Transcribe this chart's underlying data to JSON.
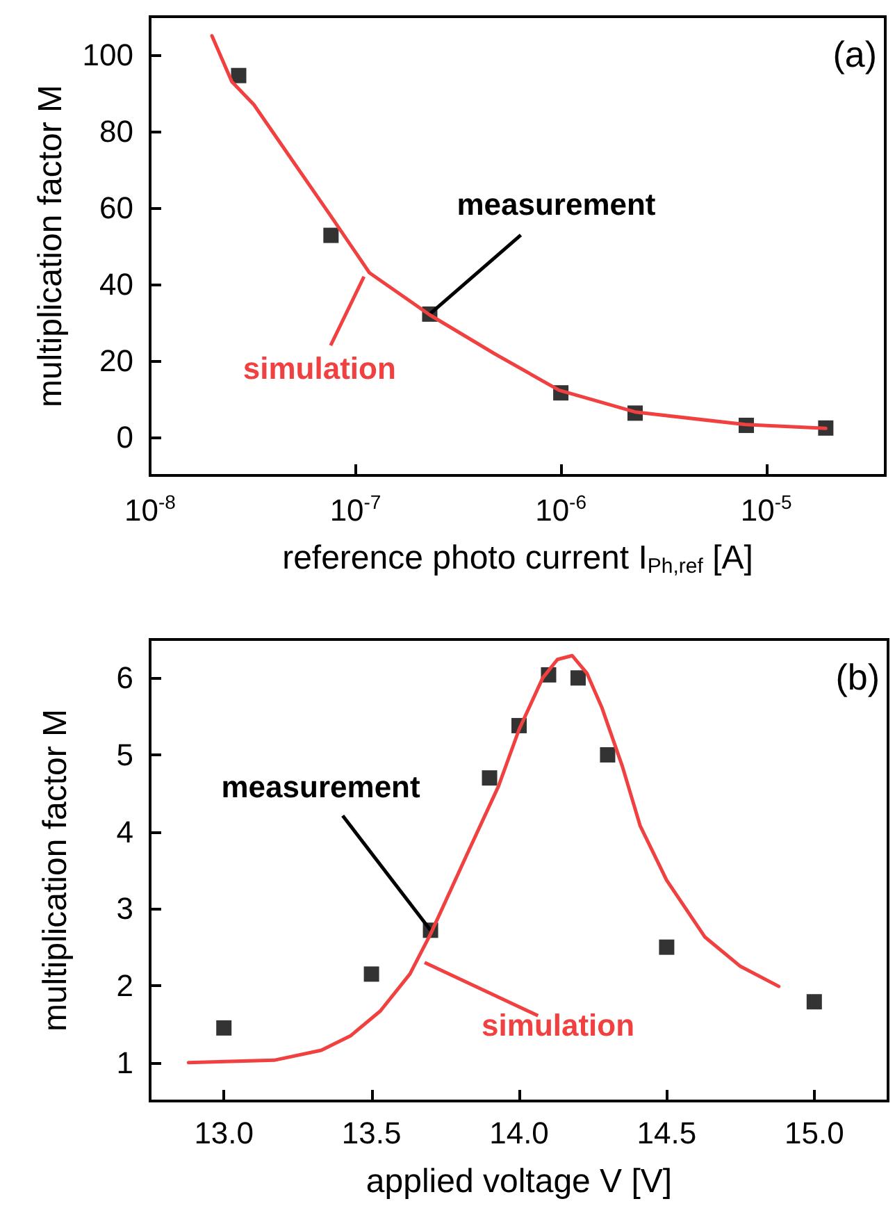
{
  "chart_data": [
    {
      "type": "scatter",
      "xlabel": "reference photo current I$_{Ph,ref}$ [A]",
      "ylabel": "multiplication factor M",
      "log": "x",
      "xlim": [
        1e-08,
        3.8e-05
      ],
      "ylim": [
        -10,
        110
      ],
      "xticks": [
        {
          "value": 1e-08,
          "label": "10$^{-8}$"
        },
        {
          "value": 1e-07,
          "label": "10$^{-7}$"
        },
        {
          "value": 1e-06,
          "label": "10$^{-6}$"
        },
        {
          "value": 1e-05,
          "label": "10$^{-5}$"
        }
      ],
      "yticks": [
        0,
        20,
        40,
        60,
        80,
        100
      ],
      "grid": false,
      "annotations": [
        "(a)",
        {
          "text": "measurement",
          "x": 2.3e-07,
          "y": 32.2
        },
        {
          "text": "simulation",
          "x": 1.1e-07,
          "y": 42
        }
      ],
      "series": [
        {
          "marker": "square",
          "color": "#000000",
          "x": [
            2.7e-08,
            7.6e-08,
            2.3e-07,
            1e-06,
            2.3e-06,
            8e-06,
            1.95e-05
          ],
          "values": [
            94.6,
            52.8,
            32.2,
            11.6,
            6.3,
            3.1,
            2.4
          ]
        },
        {
          "type": "line",
          "marker": "none",
          "line_style": "solid",
          "color": "#f04040",
          "x": [
            2e-08,
            2.5e-08,
            3.2e-08,
            4.7e-08,
            7.6e-08,
            1.17e-07,
            2.3e-07,
            4.7e-07,
            9.8e-07,
            2.3e-06,
            7.9e-06,
            1.95e-05
          ],
          "values": [
            105,
            93,
            87,
            74,
            57.8,
            43,
            32,
            22,
            12.3,
            6.6,
            3.3,
            2.3
          ]
        }
      ]
    },
    {
      "type": "scatter",
      "xlabel": "applied voltage V [V]",
      "ylabel": "multiplication factor M",
      "xlim": [
        12.75,
        15.25
      ],
      "ylim": [
        0.5,
        6.5
      ],
      "xticks": [
        {
          "value": 13,
          "label": "13.0"
        },
        {
          "value": 13.5,
          "label": "13.5"
        },
        {
          "value": 14,
          "label": "14.0"
        },
        {
          "value": 14.5,
          "label": "14.5"
        },
        {
          "value": 15,
          "label": "15.0"
        }
      ],
      "yticks": [
        1,
        2,
        3,
        4,
        5,
        6
      ],
      "grid": false,
      "annotations": [
        "(b)",
        {
          "text": "measurement",
          "x": 13.7,
          "y": 2.72
        },
        {
          "text": "simulation",
          "x": 13.68,
          "y": 2.3
        }
      ],
      "series": [
        {
          "marker": "square",
          "color": "#000000",
          "x": [
            13,
            13.5,
            13.7,
            13.9,
            14,
            14.1,
            14.2,
            14.3,
            14.5,
            15
          ],
          "values": [
            1.45,
            2.15,
            2.72,
            4.7,
            5.38,
            6.04,
            6.0,
            5.0,
            2.5,
            1.79
          ]
        },
        {
          "type": "line",
          "marker": "none",
          "line_style": "solid",
          "color": "#f04040",
          "x": [
            12.88,
            13.17,
            13.33,
            13.43,
            13.53,
            13.63,
            13.7,
            13.83,
            13.93,
            14.0,
            14.08,
            14.13,
            14.18,
            14.23,
            14.28,
            14.35,
            14.41,
            14.5,
            14.63,
            14.75,
            14.88
          ],
          "values": [
            1.0,
            1.03,
            1.16,
            1.35,
            1.67,
            2.15,
            2.67,
            3.76,
            4.59,
            5.33,
            6.0,
            6.24,
            6.29,
            6.06,
            5.62,
            4.85,
            4.08,
            3.37,
            2.63,
            2.25,
            1.99
          ]
        }
      ]
    }
  ]
}
